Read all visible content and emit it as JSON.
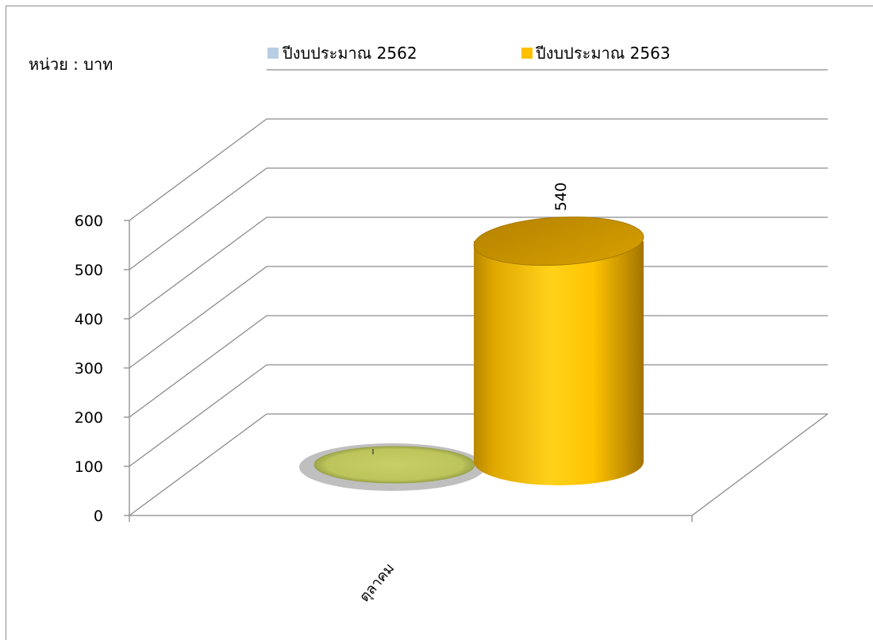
{
  "chart_data": {
    "type": "bar",
    "unit_label": "หน่วย : บาท",
    "categories": [
      "ตุลาคม"
    ],
    "series": [
      {
        "name": "ปีงบประมาณ 2562",
        "values": [
          0
        ],
        "data_labels": [
          ""
        ],
        "color": "#b9cde5"
      },
      {
        "name": "ปีงบประมาณ 2563",
        "values": [
          540
        ],
        "data_labels": [
          "540"
        ],
        "color": "#ffc000"
      }
    ],
    "y_ticks": [
      "0",
      "100",
      "200",
      "300",
      "400",
      "500",
      "600"
    ],
    "ylim": [
      0,
      600
    ],
    "grid": true,
    "legend_position": "top",
    "style": "3d-cylinder"
  }
}
